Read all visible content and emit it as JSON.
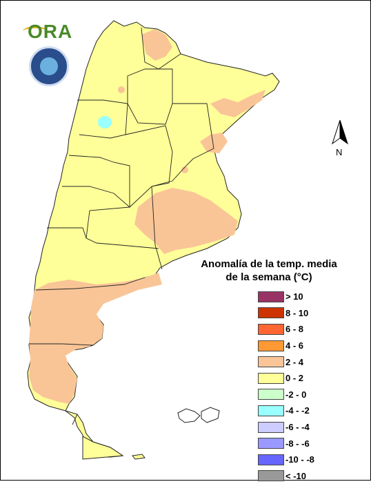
{
  "header": {
    "logo_text": "ORA",
    "seal_name": "smn-seal"
  },
  "compass": {
    "label": "N"
  },
  "legend": {
    "title_line1": "Anomalía de la temp. media",
    "title_line2": "de la semana (°C)",
    "items": [
      {
        "label": "> 10",
        "color": "#993366"
      },
      {
        "label": "8 - 10",
        "color": "#cc3300"
      },
      {
        "label": "6 - 8",
        "color": "#ff6633"
      },
      {
        "label": "4 - 6",
        "color": "#ff9933"
      },
      {
        "label": "2 - 4",
        "color": "#f9c597"
      },
      {
        "label": "0 - 2",
        "color": "#ffff99"
      },
      {
        "label": "-2 - 0",
        "color": "#ccffcc"
      },
      {
        "label": "-4 - -2",
        "color": "#99ffff"
      },
      {
        "label": "-6 - -4",
        "color": "#ccccff"
      },
      {
        "label": "-8 - -6",
        "color": "#9999ff"
      },
      {
        "label": "-10 - -8",
        "color": "#6666ff"
      },
      {
        "label": "< -10",
        "color": "#999999"
      }
    ]
  },
  "map": {
    "base_color": "#ffff99",
    "warm_color": "#f9c597",
    "cool_color": "#99ffff",
    "border_color": "#222222"
  }
}
